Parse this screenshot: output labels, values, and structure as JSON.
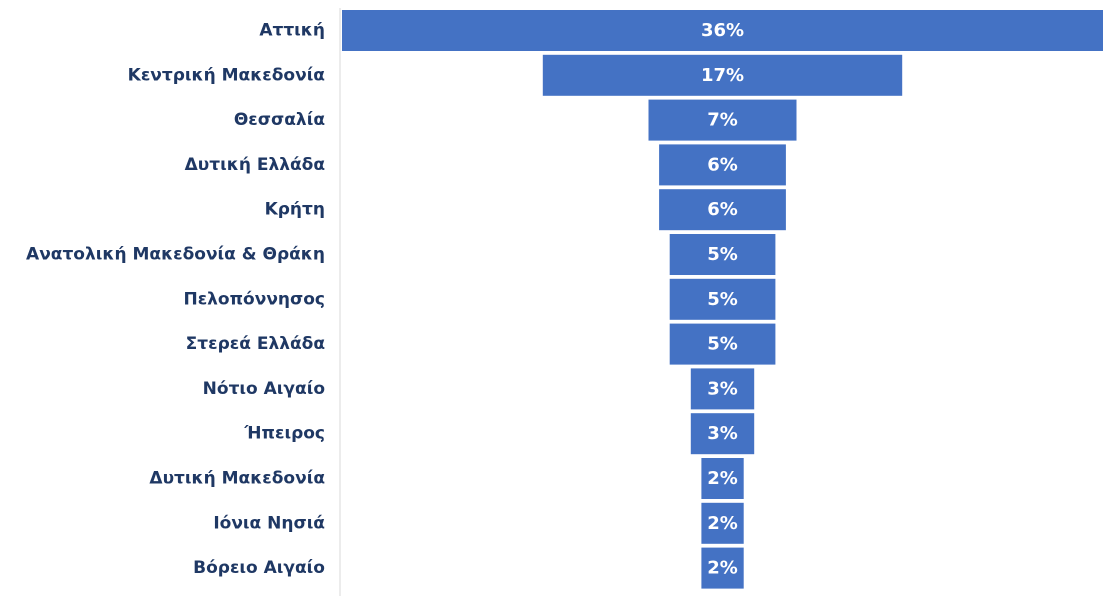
{
  "chart_data": {
    "type": "bar",
    "orientation": "horizontal",
    "layout": "funnel",
    "title": "",
    "xlabel": "",
    "ylabel": "",
    "grid": false,
    "legend": false,
    "bar_color": "#4472c4",
    "label_color": "#1f3864",
    "data_label_color": "#ffffff",
    "categories": [
      "Αττική",
      "Κεντρική Μακεδονία",
      "Θεσσαλία",
      "Δυτική Ελλάδα",
      "Κρήτη",
      "Ανατολική Μακεδονία & Θράκη",
      "Πελοπόννησος",
      "Στερεά Ελλάδα",
      "Νότιο Αιγαίο",
      "Ήπειρος",
      "Δυτική Μακεδονία",
      "Ιόνια Νησιά",
      "Βόρειο Αιγαίο"
    ],
    "values": [
      36,
      17,
      7,
      6,
      6,
      5,
      5,
      5,
      3,
      3,
      2,
      2,
      2
    ],
    "data_labels": [
      "36%",
      "17%",
      "7%",
      "6%",
      "6%",
      "5%",
      "5%",
      "5%",
      "3%",
      "3%",
      "2%",
      "2%",
      "2%"
    ]
  }
}
